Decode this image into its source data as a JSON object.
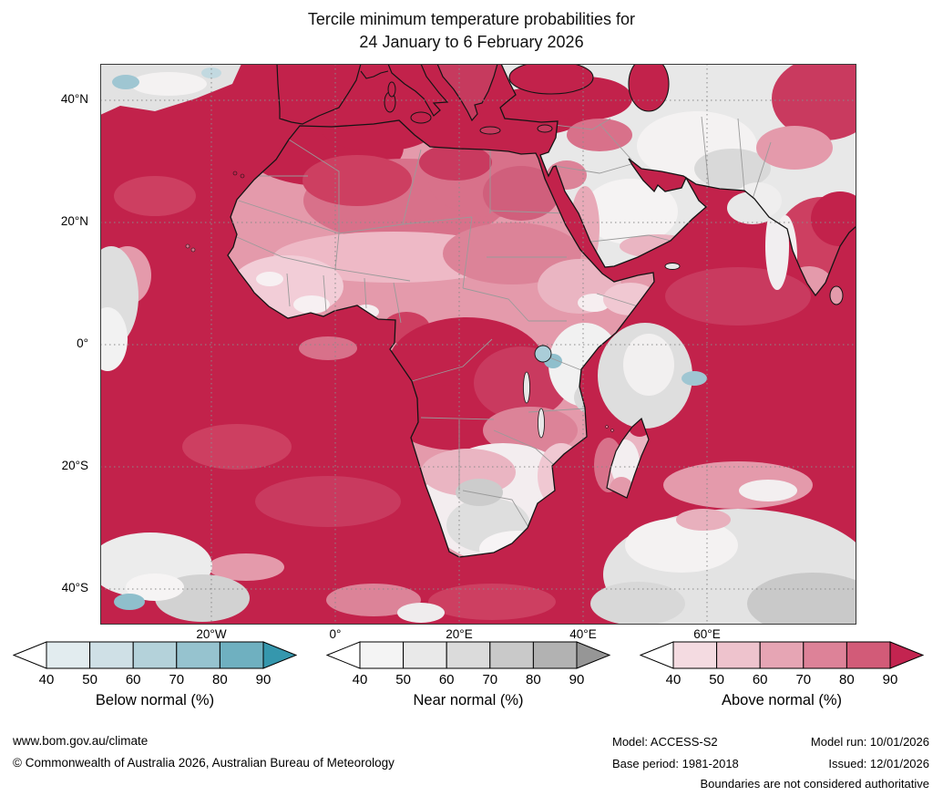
{
  "title": {
    "line1": "Tercile minimum temperature probabilities for",
    "line2": "24 January to 6 February 2026"
  },
  "map": {
    "lat_labels": [
      "40°N",
      "20°N",
      "0°",
      "20°S",
      "40°S"
    ],
    "lon_labels": [
      "20°W",
      "0°",
      "20°E",
      "40°E",
      "60°E"
    ]
  },
  "legends": [
    {
      "id": "below-normal",
      "label": "Below normal (%)",
      "ticks": [
        "40",
        "50",
        "60",
        "70",
        "80",
        "90"
      ],
      "tip_left_color": "#ffffff",
      "segment_colors": [
        "#e2ecef",
        "#cfe0e6",
        "#b4d2da",
        "#96c3cf",
        "#6fb0c0"
      ],
      "tip_right_color": "#3597ad"
    },
    {
      "id": "near-normal",
      "label": "Near normal (%)",
      "ticks": [
        "40",
        "50",
        "60",
        "70",
        "80",
        "90"
      ],
      "tip_left_color": "#ffffff",
      "segment_colors": [
        "#f4f4f4",
        "#e9e9e9",
        "#dbdbdb",
        "#c9c9c9",
        "#b2b2b2"
      ],
      "tip_right_color": "#969696"
    },
    {
      "id": "above-normal",
      "label": "Above normal (%)",
      "ticks": [
        "40",
        "50",
        "60",
        "70",
        "80",
        "90"
      ],
      "tip_left_color": "#ffffff",
      "segment_colors": [
        "#f4dbe1",
        "#eec3cd",
        "#e6a5b4",
        "#dd8298",
        "#d25b78"
      ],
      "tip_right_color": "#c32450"
    }
  ],
  "map_colors": {
    "ocean_dominant": "#c2224b",
    "near_normal_gray": "#e3e3e3",
    "below_normal_blue": "#8fbfcc"
  },
  "footer": {
    "website": "www.bom.gov.au/climate",
    "copyright": "© Commonwealth of Australia 2026, Australian Bureau of Meteorology",
    "model": "Model: ACCESS-S2",
    "model_run": "Model run: 10/01/2026",
    "base_period": "Base period: 1981-2018",
    "issued": "Issued: 12/01/2026",
    "disclaimer": "Boundaries are not considered authoritative"
  }
}
